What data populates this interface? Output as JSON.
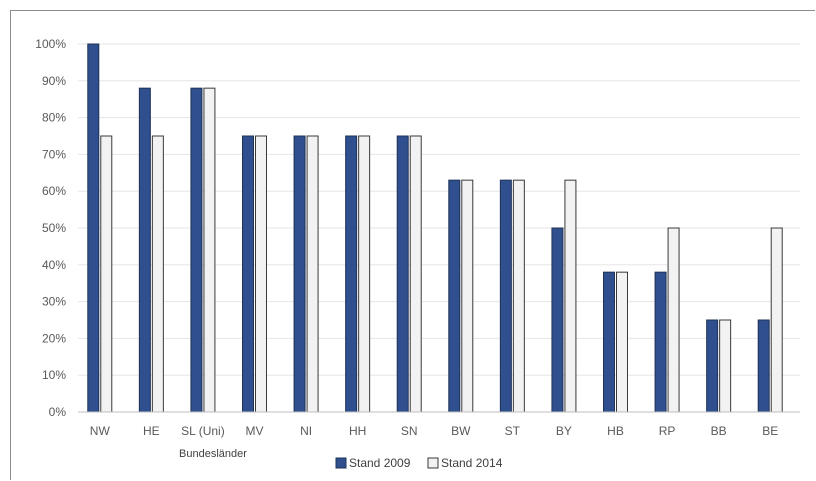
{
  "chart_data": {
    "type": "bar",
    "title": "",
    "xlabel": "Bundesländer",
    "ylabel": "",
    "ylim": [
      0,
      100
    ],
    "ytick_step": 10,
    "ytick_suffix": "%",
    "grid": true,
    "legend_position": "bottom",
    "categories": [
      "NW",
      "HE",
      "SL (Uni)",
      "MV",
      "NI",
      "HH",
      "SN",
      "BW",
      "ST",
      "BY",
      "HB",
      "RP",
      "BB",
      "BE"
    ],
    "series": [
      {
        "name": "Stand 2009",
        "color": "#2f4f8f",
        "values": [
          100,
          88,
          88,
          75,
          75,
          75,
          75,
          63,
          63,
          50,
          38,
          38,
          25,
          25
        ]
      },
      {
        "name": "Stand 2014",
        "color": "#f2f2f2",
        "values": [
          75,
          75,
          88,
          75,
          75,
          75,
          75,
          63,
          63,
          63,
          38,
          50,
          25,
          50
        ]
      }
    ]
  }
}
